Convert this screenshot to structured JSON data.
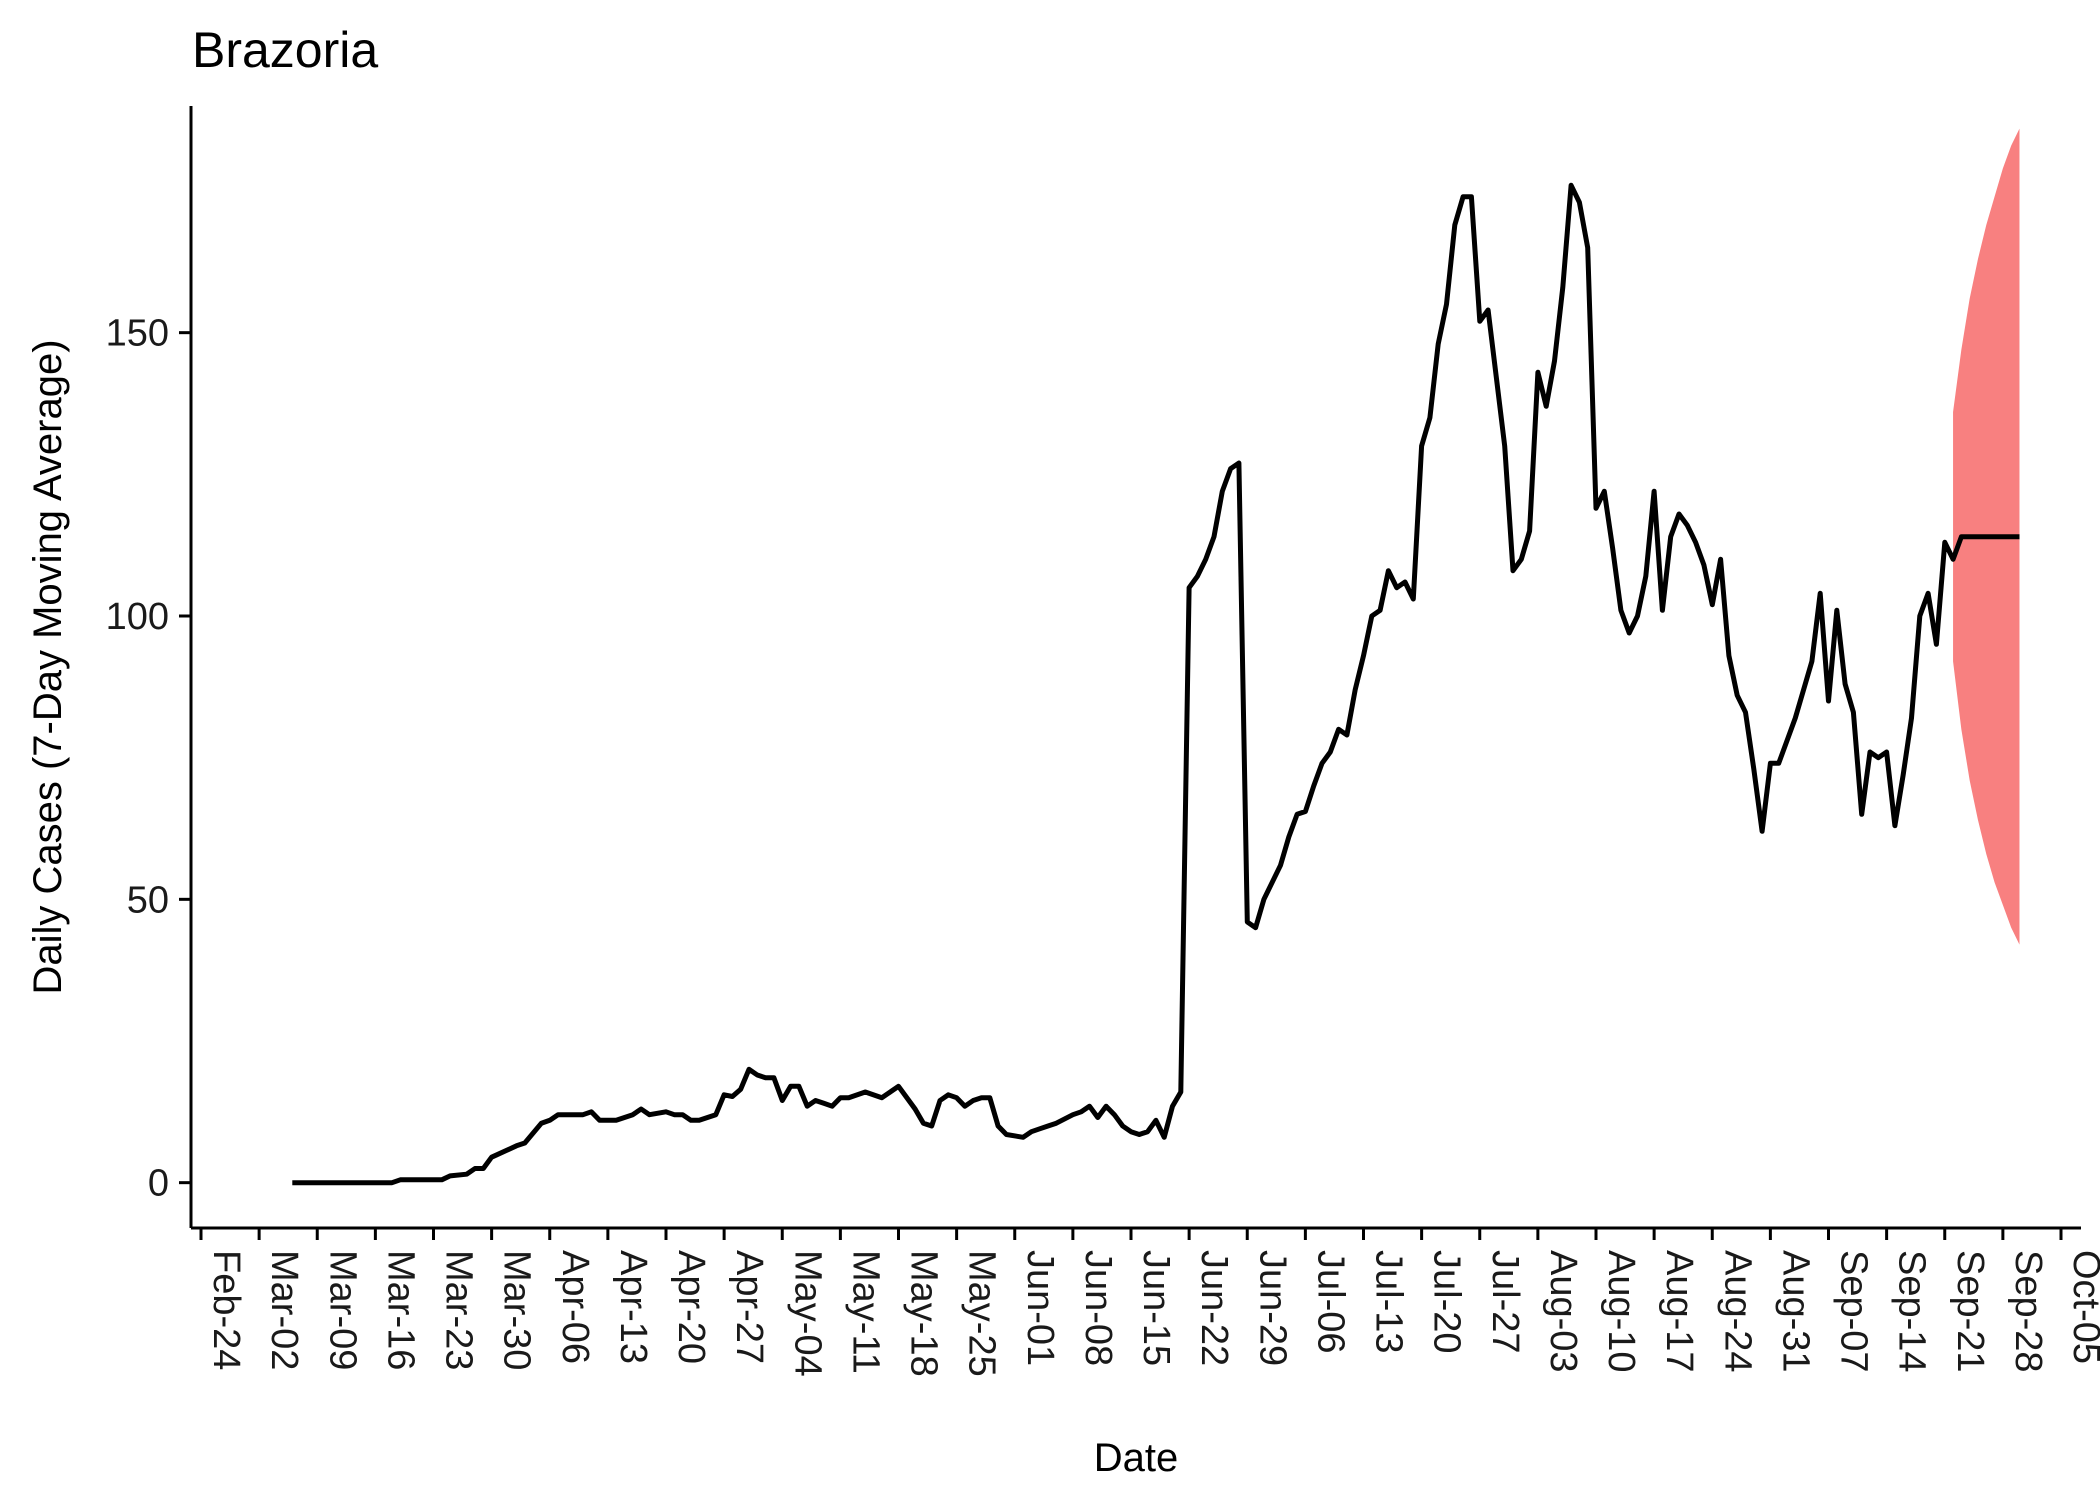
{
  "chart_data": {
    "type": "line",
    "title": "Brazoria",
    "xlabel": "Date",
    "ylabel": "Daily Cases (7-Day Moving Average)",
    "x_start_date": "2020-02-24",
    "x_end_date": "2020-10-09",
    "ylim": [
      -8,
      190
    ],
    "y_ticks": [
      0,
      50,
      100,
      150
    ],
    "x_tick_labels": [
      "Feb-24",
      "Mar-02",
      "Mar-09",
      "Mar-16",
      "Mar-23",
      "Mar-30",
      "Apr-06",
      "Apr-13",
      "Apr-20",
      "Apr-27",
      "May-04",
      "May-11",
      "May-18",
      "May-25",
      "Jun-01",
      "Jun-08",
      "Jun-15",
      "Jun-22",
      "Jun-29",
      "Jul-06",
      "Jul-13",
      "Jul-20",
      "Jul-27",
      "Aug-03",
      "Aug-10",
      "Aug-17",
      "Aug-24",
      "Aug-31",
      "Sep-07",
      "Sep-14",
      "Sep-21",
      "Sep-28",
      "Oct-05"
    ],
    "grid": false,
    "legend": "none",
    "series": [
      {
        "line_color": "#000000",
        "points": [
          [
            "2020-03-06",
            0
          ],
          [
            "2020-03-10",
            0
          ],
          [
            "2020-03-14",
            0
          ],
          [
            "2020-03-18",
            0
          ],
          [
            "2020-03-19",
            0.5
          ],
          [
            "2020-03-24",
            0.5
          ],
          [
            "2020-03-25",
            1.2
          ],
          [
            "2020-03-27",
            1.5
          ],
          [
            "2020-03-28",
            2.5
          ],
          [
            "2020-03-29",
            2.5
          ],
          [
            "2020-03-30",
            4.5
          ],
          [
            "2020-04-02",
            6.5
          ],
          [
            "2020-04-03",
            7
          ],
          [
            "2020-04-05",
            10.5
          ],
          [
            "2020-04-06",
            11
          ],
          [
            "2020-04-07",
            12
          ],
          [
            "2020-04-10",
            12
          ],
          [
            "2020-04-11",
            12.5
          ],
          [
            "2020-04-12",
            11
          ],
          [
            "2020-04-14",
            11
          ],
          [
            "2020-04-15",
            11.5
          ],
          [
            "2020-04-16",
            12
          ],
          [
            "2020-04-17",
            13
          ],
          [
            "2020-04-18",
            12
          ],
          [
            "2020-04-20",
            12.5
          ],
          [
            "2020-04-21",
            12
          ],
          [
            "2020-04-22",
            12
          ],
          [
            "2020-04-23",
            11
          ],
          [
            "2020-04-24",
            11
          ],
          [
            "2020-04-25",
            11.5
          ],
          [
            "2020-04-26",
            12
          ],
          [
            "2020-04-27",
            15.5
          ],
          [
            "2020-04-28",
            15.2
          ],
          [
            "2020-04-29",
            16.5
          ],
          [
            "2020-04-30",
            20
          ],
          [
            "2020-05-01",
            19
          ],
          [
            "2020-05-02",
            18.5
          ],
          [
            "2020-05-03",
            18.5
          ],
          [
            "2020-05-04",
            14.5
          ],
          [
            "2020-05-05",
            17
          ],
          [
            "2020-05-06",
            17
          ],
          [
            "2020-05-07",
            13.5
          ],
          [
            "2020-05-08",
            14.5
          ],
          [
            "2020-05-09",
            14
          ],
          [
            "2020-05-10",
            13.5
          ],
          [
            "2020-05-11",
            15
          ],
          [
            "2020-05-12",
            15
          ],
          [
            "2020-05-14",
            16
          ],
          [
            "2020-05-16",
            15
          ],
          [
            "2020-05-18",
            17
          ],
          [
            "2020-05-20",
            13
          ],
          [
            "2020-05-21",
            10.5
          ],
          [
            "2020-05-22",
            10
          ],
          [
            "2020-05-23",
            14.5
          ],
          [
            "2020-05-24",
            15.5
          ],
          [
            "2020-05-25",
            15
          ],
          [
            "2020-05-26",
            13.5
          ],
          [
            "2020-05-27",
            14.5
          ],
          [
            "2020-05-28",
            15
          ],
          [
            "2020-05-29",
            15
          ],
          [
            "2020-05-30",
            10
          ],
          [
            "2020-05-31",
            8.5
          ],
          [
            "2020-06-02",
            8
          ],
          [
            "2020-06-03",
            9
          ],
          [
            "2020-06-04",
            9.5
          ],
          [
            "2020-06-05",
            10
          ],
          [
            "2020-06-06",
            10.5
          ],
          [
            "2020-06-08",
            12
          ],
          [
            "2020-06-09",
            12.5
          ],
          [
            "2020-06-10",
            13.5
          ],
          [
            "2020-06-11",
            11.5
          ],
          [
            "2020-06-12",
            13.5
          ],
          [
            "2020-06-13",
            12
          ],
          [
            "2020-06-14",
            10
          ],
          [
            "2020-06-15",
            9
          ],
          [
            "2020-06-16",
            8.5
          ],
          [
            "2020-06-17",
            9
          ],
          [
            "2020-06-18",
            11
          ],
          [
            "2020-06-19",
            8
          ],
          [
            "2020-06-20",
            13.5
          ],
          [
            "2020-06-21",
            16
          ],
          [
            "2020-06-22",
            105
          ],
          [
            "2020-06-23",
            107
          ],
          [
            "2020-06-24",
            110
          ],
          [
            "2020-06-25",
            114
          ],
          [
            "2020-06-26",
            122
          ],
          [
            "2020-06-27",
            126
          ],
          [
            "2020-06-28",
            127
          ],
          [
            "2020-06-29",
            46
          ],
          [
            "2020-06-30",
            45
          ],
          [
            "2020-07-01",
            50
          ],
          [
            "2020-07-02",
            53
          ],
          [
            "2020-07-03",
            56
          ],
          [
            "2020-07-04",
            61
          ],
          [
            "2020-07-05",
            65
          ],
          [
            "2020-07-06",
            65.5
          ],
          [
            "2020-07-07",
            70
          ],
          [
            "2020-07-08",
            74
          ],
          [
            "2020-07-09",
            76
          ],
          [
            "2020-07-10",
            80
          ],
          [
            "2020-07-11",
            79
          ],
          [
            "2020-07-12",
            87
          ],
          [
            "2020-07-13",
            93
          ],
          [
            "2020-07-14",
            100
          ],
          [
            "2020-07-15",
            101
          ],
          [
            "2020-07-16",
            108
          ],
          [
            "2020-07-17",
            105
          ],
          [
            "2020-07-18",
            106
          ],
          [
            "2020-07-19",
            103
          ],
          [
            "2020-07-20",
            130
          ],
          [
            "2020-07-21",
            135
          ],
          [
            "2020-07-22",
            148
          ],
          [
            "2020-07-23",
            155
          ],
          [
            "2020-07-24",
            169
          ],
          [
            "2020-07-25",
            174
          ],
          [
            "2020-07-26",
            174
          ],
          [
            "2020-07-27",
            152
          ],
          [
            "2020-07-28",
            154
          ],
          [
            "2020-07-29",
            142
          ],
          [
            "2020-07-30",
            130
          ],
          [
            "2020-07-31",
            108
          ],
          [
            "2020-08-01",
            110
          ],
          [
            "2020-08-02",
            115
          ],
          [
            "2020-08-03",
            143
          ],
          [
            "2020-08-04",
            137
          ],
          [
            "2020-08-05",
            145
          ],
          [
            "2020-08-06",
            158
          ],
          [
            "2020-08-07",
            176
          ],
          [
            "2020-08-08",
            173
          ],
          [
            "2020-08-09",
            165
          ],
          [
            "2020-08-10",
            119
          ],
          [
            "2020-08-11",
            122
          ],
          [
            "2020-08-12",
            112
          ],
          [
            "2020-08-13",
            101
          ],
          [
            "2020-08-14",
            97
          ],
          [
            "2020-08-15",
            100
          ],
          [
            "2020-08-16",
            107
          ],
          [
            "2020-08-17",
            122
          ],
          [
            "2020-08-18",
            101
          ],
          [
            "2020-08-19",
            114
          ],
          [
            "2020-08-20",
            118
          ],
          [
            "2020-08-21",
            116
          ],
          [
            "2020-08-22",
            113
          ],
          [
            "2020-08-23",
            109
          ],
          [
            "2020-08-24",
            102
          ],
          [
            "2020-08-25",
            110
          ],
          [
            "2020-08-26",
            93
          ],
          [
            "2020-08-27",
            86
          ],
          [
            "2020-08-28",
            83
          ],
          [
            "2020-08-29",
            73
          ],
          [
            "2020-08-30",
            62
          ],
          [
            "2020-08-31",
            74
          ],
          [
            "2020-09-01",
            74
          ],
          [
            "2020-09-02",
            78
          ],
          [
            "2020-09-03",
            82
          ],
          [
            "2020-09-04",
            87
          ],
          [
            "2020-09-05",
            92
          ],
          [
            "2020-09-06",
            104
          ],
          [
            "2020-09-07",
            85
          ],
          [
            "2020-09-08",
            101
          ],
          [
            "2020-09-09",
            88
          ],
          [
            "2020-09-10",
            83
          ],
          [
            "2020-09-11",
            65
          ],
          [
            "2020-09-12",
            76
          ],
          [
            "2020-09-13",
            75
          ],
          [
            "2020-09-14",
            76
          ],
          [
            "2020-09-15",
            63
          ],
          [
            "2020-09-16",
            72
          ],
          [
            "2020-09-17",
            82
          ],
          [
            "2020-09-18",
            100
          ],
          [
            "2020-09-19",
            104
          ],
          [
            "2020-09-20",
            95
          ],
          [
            "2020-09-21",
            113
          ],
          [
            "2020-09-22",
            110
          ],
          [
            "2020-09-23",
            114
          ],
          [
            "2020-09-24",
            114
          ],
          [
            "2020-09-30",
            114
          ]
        ]
      },
      {
        "type": "area",
        "fill_color": "#f88080",
        "points": [
          [
            "2020-09-22",
            92,
            136
          ],
          [
            "2020-09-23",
            80,
            147
          ],
          [
            "2020-09-24",
            71,
            156
          ],
          [
            "2020-09-25",
            64,
            163
          ],
          [
            "2020-09-26",
            58,
            169
          ],
          [
            "2020-09-27",
            53,
            174
          ],
          [
            "2020-09-28",
            49,
            179
          ],
          [
            "2020-09-29",
            45,
            183
          ],
          [
            "2020-09-30",
            42,
            186
          ]
        ]
      }
    ]
  }
}
